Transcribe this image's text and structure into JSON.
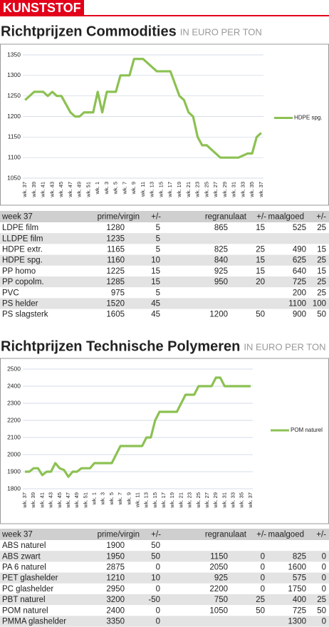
{
  "header": "KUNSTSTOF",
  "chart_data": [
    {
      "type": "line",
      "title": "Richtprijzen Commodities",
      "subtitle": "IN EURO PER TON",
      "categories": [
        "wk. 37",
        null,
        "wk. 39",
        null,
        "wk. 41",
        null,
        "wk. 43",
        null,
        "wk. 45",
        null,
        "wk. 47",
        null,
        "wk. 49",
        null,
        "wk. 51",
        null,
        "wk. 1",
        null,
        "wk. 3",
        null,
        "wk. 5",
        null,
        "wk. 7",
        null,
        "wk. 9",
        null,
        "wk. 11",
        null,
        "wk. 13",
        null,
        "wk. 15",
        null,
        "wk. 17",
        null,
        "wk. 19",
        null,
        "wk. 21",
        null,
        "wk. 23",
        null,
        "wk. 25",
        null,
        "wk. 27",
        null,
        "wk. 29",
        null,
        "wk. 31",
        null,
        "wk. 33",
        null,
        "wk. 35",
        null,
        "wk. 37"
      ],
      "series": [
        {
          "name": "HDPE spg.",
          "color": "#8cc152",
          "values": [
            1240,
            1250,
            1260,
            1260,
            1260,
            1250,
            1260,
            1250,
            1250,
            1230,
            1210,
            1200,
            1200,
            1210,
            1210,
            1210,
            1260,
            1210,
            1260,
            1260,
            1260,
            1300,
            1300,
            1300,
            1340,
            1340,
            1340,
            1330,
            1320,
            1310,
            1310,
            1310,
            1310,
            1280,
            1250,
            1240,
            1210,
            1200,
            1150,
            1130,
            1130,
            1120,
            1110,
            1100,
            1100,
            1100,
            1100,
            1100,
            1105,
            1110,
            1110,
            1150,
            1160
          ]
        }
      ],
      "ylim": [
        1050,
        1350
      ],
      "yticks": [
        1050,
        1100,
        1150,
        1200,
        1250,
        1300,
        1350
      ],
      "grid": true
    },
    {
      "type": "line",
      "title": "Richtprijzen Technische Polymeren",
      "subtitle": "IN EURO PER TON",
      "categories": [
        "wk. 37",
        null,
        "wk. 39",
        null,
        "wk. 41",
        null,
        "wk. 43",
        null,
        "wk. 45",
        null,
        "wk. 47",
        null,
        "wk. 49",
        null,
        "wk. 51",
        null,
        "wk. 1",
        null,
        "wk. 3",
        null,
        "wk. 5",
        null,
        "wk. 7",
        null,
        "wk. 9",
        null,
        "wk. 11",
        null,
        "wk. 13",
        null,
        "wk. 15",
        null,
        "wk. 17",
        null,
        "wk. 19",
        null,
        "wk. 21",
        null,
        "wk. 23",
        null,
        "wk. 25",
        null,
        "wk. 27",
        null,
        "wk. 29",
        null,
        "wk. 31",
        null,
        "wk. 33",
        null,
        "wk. 35",
        null,
        "wk. 37"
      ],
      "series": [
        {
          "name": "POM naturel",
          "color": "#8cc152",
          "values": [
            1900,
            1900,
            1920,
            1920,
            1880,
            1900,
            1900,
            1950,
            1920,
            1910,
            1870,
            1900,
            1900,
            1920,
            1920,
            1920,
            1950,
            1950,
            1950,
            1950,
            1950,
            2000,
            2050,
            2050,
            2050,
            2050,
            2050,
            2050,
            2100,
            2100,
            2200,
            2250,
            2250,
            2250,
            2250,
            2250,
            2300,
            2350,
            2350,
            2350,
            2400,
            2400,
            2400,
            2400,
            2450,
            2450,
            2400,
            2400,
            2400,
            2400,
            2400,
            2400,
            2400
          ]
        }
      ],
      "ylim": [
        1800,
        2500
      ],
      "yticks": [
        1800,
        1900,
        2000,
        2100,
        2200,
        2300,
        2400,
        2500
      ],
      "grid": true
    }
  ],
  "tables": [
    {
      "columns": [
        "week 37",
        "prime/virgin",
        "+/-",
        "regranulaat",
        "+/-",
        "maalgoed",
        "+/-"
      ],
      "rows": [
        [
          "LDPE film",
          1280,
          5,
          865,
          15,
          525,
          25
        ],
        [
          "LLDPE film",
          1235,
          5,
          null,
          null,
          null,
          null
        ],
        [
          "HDPE extr.",
          1165,
          5,
          825,
          25,
          490,
          15
        ],
        [
          "HDPE spg.",
          1160,
          10,
          840,
          15,
          625,
          25
        ],
        [
          "PP homo",
          1225,
          15,
          925,
          15,
          640,
          15
        ],
        [
          "PP copolm.",
          1285,
          15,
          950,
          20,
          725,
          25
        ],
        [
          "PVC",
          975,
          5,
          null,
          null,
          200,
          25
        ],
        [
          "PS helder",
          1520,
          45,
          null,
          null,
          1100,
          100
        ],
        [
          "PS slagsterk",
          1605,
          45,
          1200,
          50,
          900,
          50
        ]
      ]
    },
    {
      "columns": [
        "week 37",
        "prime/virgin",
        "+/-",
        "regranulaat",
        "+/-",
        "maalgoed",
        "+/-"
      ],
      "rows": [
        [
          "ABS naturel",
          1900,
          50,
          null,
          null,
          null,
          null
        ],
        [
          "ABS zwart",
          1950,
          50,
          1150,
          0,
          825,
          0
        ],
        [
          "PA 6 naturel",
          2875,
          0,
          2050,
          0,
          1600,
          0
        ],
        [
          "PET glashelder",
          1210,
          10,
          925,
          0,
          575,
          0
        ],
        [
          "PC glashelder",
          2950,
          0,
          2200,
          0,
          1750,
          0
        ],
        [
          "PBT naturel",
          3200,
          -50,
          750,
          25,
          400,
          25
        ],
        [
          "POM naturel",
          2400,
          0,
          1050,
          50,
          725,
          50
        ],
        [
          "PMMA glashelder",
          3350,
          0,
          null,
          null,
          1300,
          0
        ]
      ]
    }
  ]
}
